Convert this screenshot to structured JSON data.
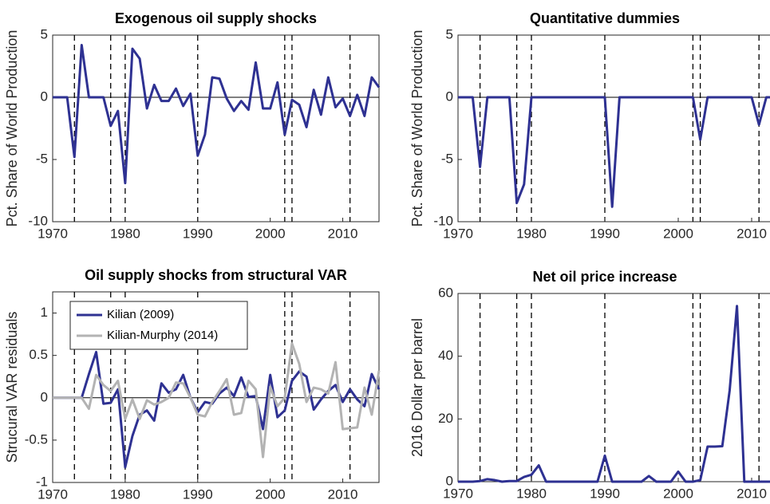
{
  "chart_data": [
    {
      "type": "line",
      "title": "Exogenous oil supply shocks",
      "y_label": "Pct. Share of World Production",
      "x": [
        1970,
        1971,
        1972,
        1973,
        1974,
        1975,
        1976,
        1977,
        1978,
        1979,
        1980,
        1981,
        1982,
        1983,
        1984,
        1985,
        1986,
        1987,
        1988,
        1989,
        1990,
        1991,
        1992,
        1993,
        1994,
        1995,
        1996,
        1997,
        1998,
        1999,
        2000,
        2001,
        2002,
        2003,
        2004,
        2005,
        2006,
        2007,
        2008,
        2009,
        2010,
        2011,
        2012,
        2013,
        2014,
        2015
      ],
      "series": [
        {
          "name": "Exogenous oil supply shocks",
          "color": "#2e3192",
          "values": [
            0,
            0,
            0,
            -4.8,
            4.2,
            0,
            0,
            0,
            -2.3,
            -1.1,
            -6.9,
            3.9,
            3.1,
            -0.9,
            1.0,
            -0.3,
            -0.3,
            0.7,
            -0.7,
            0.3,
            -4.7,
            -3.0,
            1.6,
            1.5,
            -0.1,
            -1.1,
            -0.3,
            -1.0,
            2.8,
            -0.9,
            -0.9,
            1.2,
            -3.0,
            -0.2,
            -0.6,
            -2.4,
            0.6,
            -1.4,
            1.6,
            -0.8,
            -0.1,
            -1.5,
            0.2,
            -1.5,
            1.6,
            0.8
          ]
        }
      ],
      "vlines": [
        1973,
        1978,
        1980,
        1990,
        2002,
        2003,
        2011
      ],
      "xlim": [
        1970,
        2015
      ],
      "xticks": [
        1970,
        1980,
        1990,
        2000,
        2010
      ],
      "ylim": [
        -10,
        5
      ],
      "yticks": [
        -10,
        -5,
        0,
        5
      ]
    },
    {
      "type": "line",
      "title": "Quantitative dummies",
      "y_label": "Pct. Share of World Production",
      "x": [
        1970,
        1971,
        1972,
        1973,
        1974,
        1975,
        1976,
        1977,
        1978,
        1979,
        1980,
        1981,
        1982,
        1983,
        1984,
        1985,
        1986,
        1987,
        1988,
        1989,
        1990,
        1991,
        1992,
        1993,
        1994,
        1995,
        1996,
        1997,
        1998,
        1999,
        2000,
        2001,
        2002,
        2003,
        2004,
        2005,
        2006,
        2007,
        2008,
        2009,
        2010,
        2011,
        2012,
        2013,
        2014,
        2015
      ],
      "series": [
        {
          "name": "Quantitative dummies",
          "color": "#2e3192",
          "values": [
            0,
            0,
            0,
            -5.6,
            0,
            0,
            0,
            0,
            -8.5,
            -7.0,
            0,
            0,
            0,
            0,
            0,
            0,
            0,
            0,
            0,
            0,
            0,
            -8.8,
            0,
            0,
            0,
            0,
            0,
            0,
            0,
            0,
            0,
            0,
            0,
            -3.4,
            0,
            0,
            0,
            0,
            0,
            0,
            0,
            -2.2,
            0,
            0,
            0,
            0
          ]
        }
      ],
      "vlines": [
        1973,
        1978,
        1980,
        1990,
        2002,
        2003,
        2011
      ],
      "xlim": [
        1970,
        2015
      ],
      "xticks": [
        1970,
        1980,
        1990,
        2000,
        2010
      ],
      "ylim": [
        -10,
        5
      ],
      "yticks": [
        -10,
        -5,
        0,
        5
      ]
    },
    {
      "type": "line",
      "title": "Oil supply shocks from structural VAR",
      "y_label": "Strucural VAR residuals",
      "x": [
        1970,
        1971,
        1972,
        1973,
        1974,
        1975,
        1976,
        1977,
        1978,
        1979,
        1980,
        1981,
        1982,
        1983,
        1984,
        1985,
        1986,
        1987,
        1988,
        1989,
        1990,
        1991,
        1992,
        1993,
        1994,
        1995,
        1996,
        1997,
        1998,
        1999,
        2000,
        2001,
        2002,
        2003,
        2004,
        2005,
        2006,
        2007,
        2008,
        2009,
        2010,
        2011,
        2012,
        2013,
        2014,
        2015
      ],
      "series": [
        {
          "name": "Kilian (2009)",
          "color": "#2e3192",
          "values": [
            0,
            0,
            0,
            0,
            0,
            0.28,
            0.54,
            -0.07,
            -0.06,
            0.1,
            -0.82,
            -0.45,
            -0.2,
            -0.15,
            -0.27,
            0.17,
            0.06,
            0.1,
            0.27,
            0.0,
            -0.17,
            -0.05,
            -0.07,
            0.05,
            0.12,
            0.02,
            0.24,
            0.01,
            0.02,
            -0.37,
            0.27,
            -0.23,
            -0.15,
            0.2,
            0.31,
            0.25,
            -0.14,
            -0.02,
            0.08,
            0.15,
            -0.05,
            0.1,
            -0.02,
            -0.1,
            0.28,
            0.1
          ]
        },
        {
          "name": "Kilian-Murphy (2014)",
          "color": "#b3b3b3",
          "values": [
            0,
            0,
            0,
            0,
            0,
            -0.13,
            0.27,
            0.15,
            0.08,
            0.2,
            -0.25,
            -0.02,
            -0.25,
            -0.03,
            -0.08,
            -0.05,
            0.0,
            0.18,
            0.17,
            0.0,
            -0.2,
            -0.22,
            -0.05,
            0.08,
            0.22,
            -0.2,
            -0.18,
            0.2,
            0.1,
            -0.7,
            0.13,
            -0.1,
            0.0,
            0.64,
            0.4,
            -0.05,
            0.12,
            0.1,
            0.05,
            0.42,
            -0.37,
            -0.36,
            -0.35,
            0.12,
            -0.2,
            0.32
          ]
        }
      ],
      "vlines": [
        1973,
        1978,
        1980,
        1990,
        2002,
        2003,
        2011
      ],
      "legend": "upper left",
      "xlim": [
        1970,
        2015
      ],
      "xticks": [
        1970,
        1980,
        1990,
        2000,
        2010
      ],
      "ylim": [
        -1,
        1.25
      ],
      "yticks": [
        -1,
        -0.5,
        0,
        0.5,
        1
      ]
    },
    {
      "type": "line",
      "title": "Net oil price increase",
      "y_label": "2016 Dollar per barrel",
      "x": [
        1970,
        1971,
        1972,
        1973,
        1974,
        1975,
        1976,
        1977,
        1978,
        1979,
        1980,
        1981,
        1982,
        1983,
        1984,
        1985,
        1986,
        1987,
        1988,
        1989,
        1990,
        1991,
        1992,
        1993,
        1994,
        1995,
        1996,
        1997,
        1998,
        1999,
        2000,
        2001,
        2002,
        2003,
        2004,
        2005,
        2006,
        2007,
        2008,
        2009,
        2010,
        2011,
        2012,
        2013,
        2014,
        2015
      ],
      "series": [
        {
          "name": "Net oil price increase",
          "color": "#2e3192",
          "values": [
            0,
            0,
            0,
            0.2,
            0.8,
            0.5,
            0,
            0.2,
            0.2,
            1.5,
            2.2,
            5.2,
            0,
            0,
            0,
            0,
            0,
            0,
            0,
            0,
            8.3,
            0,
            0,
            0,
            0,
            0,
            1.8,
            0,
            0,
            0,
            3.2,
            0,
            0,
            0.5,
            11.2,
            11.2,
            11.3,
            29,
            56,
            0,
            0,
            0,
            0,
            0,
            0,
            0
          ]
        }
      ],
      "vlines": [
        1973,
        1978,
        1980,
        1990,
        2002,
        2003,
        2011
      ],
      "xlim": [
        1970,
        2015
      ],
      "xticks": [
        1970,
        1980,
        1990,
        2000,
        2010
      ],
      "ylim": [
        0,
        60
      ],
      "yticks": [
        0,
        20,
        40,
        60
      ]
    }
  ]
}
